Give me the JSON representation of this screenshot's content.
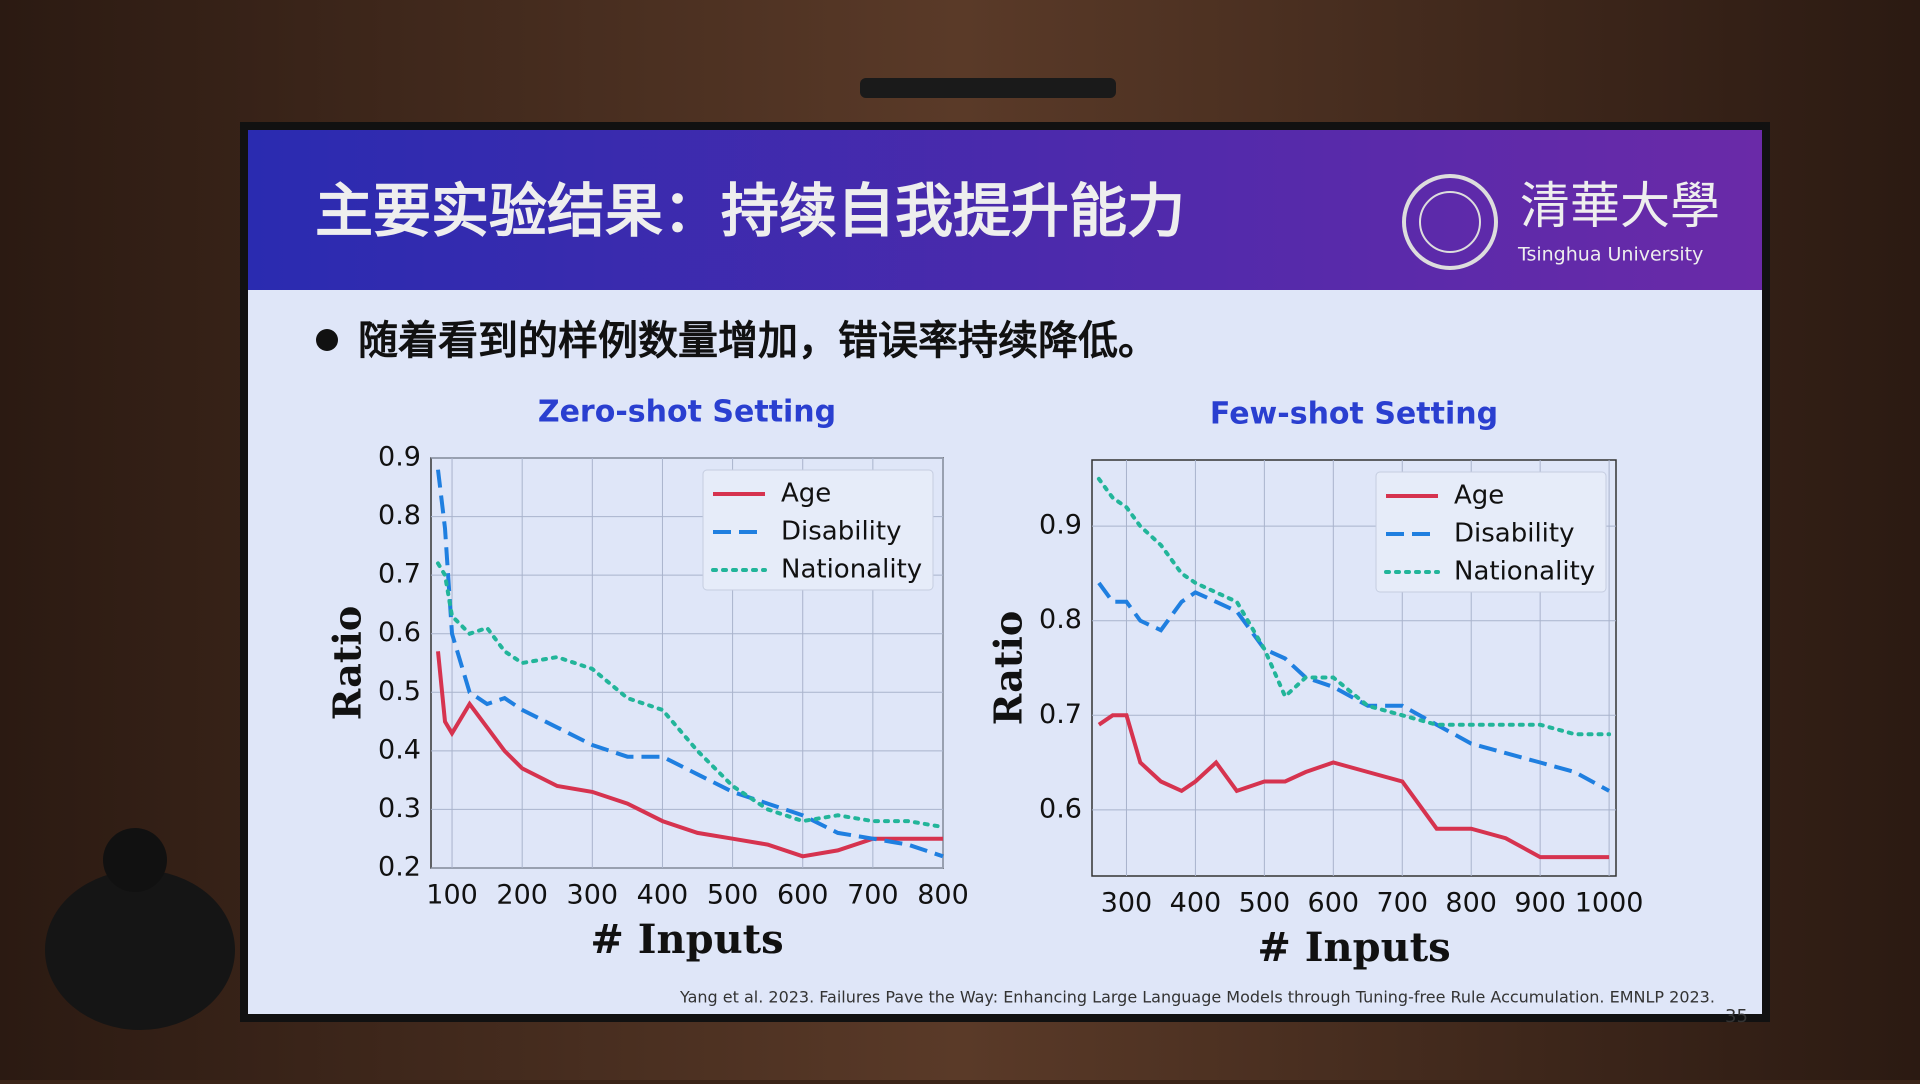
{
  "slide": {
    "title": "主要实验结果：持续自我提升能力",
    "logo_cn": "清華大學",
    "logo_en": "Tsinghua University",
    "bullet": "随着看到的样例数量增加，错误率持续降低。",
    "citation": "Yang et al. 2023. Failures Pave the Way: Enhancing Large Language Models through Tuning-free Rule Accumulation. EMNLP 2023.",
    "page_number": "35"
  },
  "chart_data": [
    {
      "type": "line",
      "title": "Zero-shot Setting",
      "x_label": "# Inputs",
      "y_label": "Ratio",
      "grid": true,
      "legend": "upper right",
      "x": [
        80,
        90,
        100,
        125,
        150,
        175,
        200,
        250,
        300,
        350,
        400,
        450,
        500,
        550,
        600,
        650,
        700,
        750,
        800
      ],
      "xlim": [
        70,
        800
      ],
      "xticks": [
        100,
        200,
        300,
        400,
        500,
        600,
        700,
        800
      ],
      "ylim": [
        0.2,
        0.9
      ],
      "yticks": [
        0.2,
        0.3,
        0.4,
        0.5,
        0.6,
        0.7,
        0.8,
        0.9
      ],
      "series": [
        {
          "name": "Age",
          "color": "#d6334f",
          "dash": "solid",
          "values": [
            0.57,
            0.45,
            0.43,
            0.48,
            0.44,
            0.4,
            0.37,
            0.34,
            0.33,
            0.31,
            0.28,
            0.26,
            0.25,
            0.24,
            0.22,
            0.23,
            0.25,
            0.25,
            0.25
          ]
        },
        {
          "name": "Disability",
          "color": "#1f7fe0",
          "dash": "dashed",
          "values": [
            0.88,
            0.78,
            0.6,
            0.5,
            0.48,
            0.49,
            0.47,
            0.44,
            0.41,
            0.39,
            0.39,
            0.36,
            0.33,
            0.31,
            0.29,
            0.26,
            0.25,
            0.24,
            0.22
          ]
        },
        {
          "name": "Nationality",
          "color": "#22b59a",
          "dash": "dotted",
          "values": [
            0.72,
            0.7,
            0.63,
            0.6,
            0.61,
            0.57,
            0.55,
            0.56,
            0.54,
            0.49,
            0.47,
            0.4,
            0.34,
            0.3,
            0.28,
            0.29,
            0.28,
            0.28,
            0.27
          ]
        }
      ]
    },
    {
      "type": "line",
      "title": "Few-shot Setting",
      "x_label": "# Inputs",
      "y_label": "Ratio",
      "grid": true,
      "legend": "upper right",
      "x": [
        260,
        280,
        300,
        320,
        350,
        380,
        400,
        430,
        460,
        500,
        530,
        560,
        600,
        650,
        700,
        750,
        800,
        850,
        900,
        950,
        1000
      ],
      "xlim": [
        250,
        1010
      ],
      "xticks": [
        300,
        400,
        500,
        600,
        700,
        800,
        900,
        1000
      ],
      "ylim": [
        0.53,
        0.97
      ],
      "yticks": [
        0.6,
        0.7,
        0.8,
        0.9
      ],
      "series": [
        {
          "name": "Age",
          "color": "#d6334f",
          "dash": "solid",
          "values": [
            0.69,
            0.7,
            0.7,
            0.65,
            0.63,
            0.62,
            0.63,
            0.65,
            0.62,
            0.63,
            0.63,
            0.64,
            0.65,
            0.64,
            0.63,
            0.58,
            0.58,
            0.57,
            0.55,
            0.55,
            0.55
          ]
        },
        {
          "name": "Disability",
          "color": "#1f7fe0",
          "dash": "dashed",
          "values": [
            0.84,
            0.82,
            0.82,
            0.8,
            0.79,
            0.82,
            0.83,
            0.82,
            0.81,
            0.77,
            0.76,
            0.74,
            0.73,
            0.71,
            0.71,
            0.69,
            0.67,
            0.66,
            0.65,
            0.64,
            0.62
          ]
        },
        {
          "name": "Nationality",
          "color": "#22b59a",
          "dash": "dotted",
          "values": [
            0.95,
            0.93,
            0.92,
            0.9,
            0.88,
            0.85,
            0.84,
            0.83,
            0.82,
            0.77,
            0.72,
            0.74,
            0.74,
            0.71,
            0.7,
            0.69,
            0.69,
            0.69,
            0.69,
            0.68,
            0.68
          ]
        }
      ]
    }
  ]
}
